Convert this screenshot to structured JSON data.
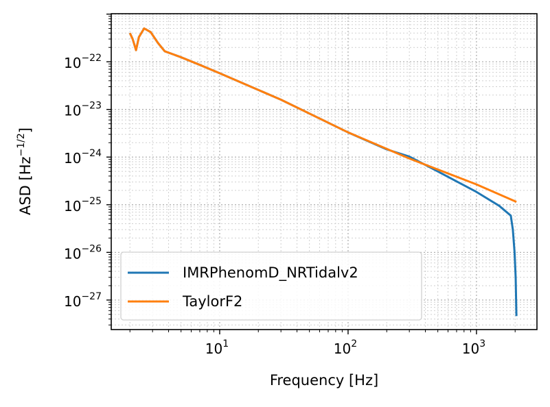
{
  "chart_data": {
    "type": "line",
    "title": "",
    "xlabel": "Frequency [Hz]",
    "ylabel": {
      "text": "ASD [Hz",
      "sup": "−1/2",
      "suffix": "]"
    },
    "xscale": "log",
    "yscale": "log",
    "xlim": [
      1.43,
      2958
    ],
    "ylim": [
      2.4e-28,
      1.02e-21
    ],
    "grid": "both, dotted",
    "legend_position": "lower-left",
    "x_ticks": [
      {
        "value": 10,
        "base": "10",
        "exp": "1"
      },
      {
        "value": 100,
        "base": "10",
        "exp": "2"
      },
      {
        "value": 1000,
        "base": "10",
        "exp": "3"
      }
    ],
    "y_ticks": [
      {
        "value": 1e-22,
        "base": "10",
        "exp": "−22"
      },
      {
        "value": 1e-23,
        "base": "10",
        "exp": "−23"
      },
      {
        "value": 1e-24,
        "base": "10",
        "exp": "−24"
      },
      {
        "value": 1e-25,
        "base": "10",
        "exp": "−25"
      },
      {
        "value": 1e-26,
        "base": "10",
        "exp": "−26"
      },
      {
        "value": 1e-27,
        "base": "10",
        "exp": "−27"
      }
    ],
    "series": [
      {
        "name": "IMRPhenomD_NRTidalv2",
        "color": "#1f77b4",
        "points": [
          [
            2.0,
            4e-22
          ],
          [
            2.1,
            3e-22
          ],
          [
            2.23,
            1.75e-22
          ],
          [
            2.35,
            3.3e-22
          ],
          [
            2.58,
            5e-22
          ],
          [
            2.9,
            4.2e-22
          ],
          [
            3.3,
            2.5e-22
          ],
          [
            3.73,
            1.66e-22
          ],
          [
            4.95,
            1.26e-22
          ],
          [
            7,
            8.6e-23
          ],
          [
            10,
            5.75e-23
          ],
          [
            30,
            1.6e-23
          ],
          [
            100,
            3.3e-24
          ],
          [
            200,
            1.45e-24
          ],
          [
            300,
            1.02e-24
          ],
          [
            500,
            5e-25
          ],
          [
            1000,
            1.86e-25
          ],
          [
            1500,
            9.5e-26
          ],
          [
            1850,
            5.9e-26
          ],
          [
            1920,
            3e-26
          ],
          [
            1980,
            1e-26
          ],
          [
            2020,
            3e-27
          ],
          [
            2048,
            4.6e-28
          ]
        ]
      },
      {
        "name": "TaylorF2",
        "color": "#ff7f0e",
        "points": [
          [
            2.0,
            4e-22
          ],
          [
            2.1,
            3e-22
          ],
          [
            2.23,
            1.75e-22
          ],
          [
            2.35,
            3.3e-22
          ],
          [
            2.58,
            5e-22
          ],
          [
            2.9,
            4.2e-22
          ],
          [
            3.3,
            2.5e-22
          ],
          [
            3.73,
            1.66e-22
          ],
          [
            4.95,
            1.26e-22
          ],
          [
            7,
            8.6e-23
          ],
          [
            10,
            5.75e-23
          ],
          [
            30,
            1.6e-23
          ],
          [
            100,
            3.3e-24
          ],
          [
            300,
            9.3e-25
          ],
          [
            1000,
            2.67e-25
          ],
          [
            2048,
            1.15e-25
          ]
        ]
      }
    ]
  }
}
